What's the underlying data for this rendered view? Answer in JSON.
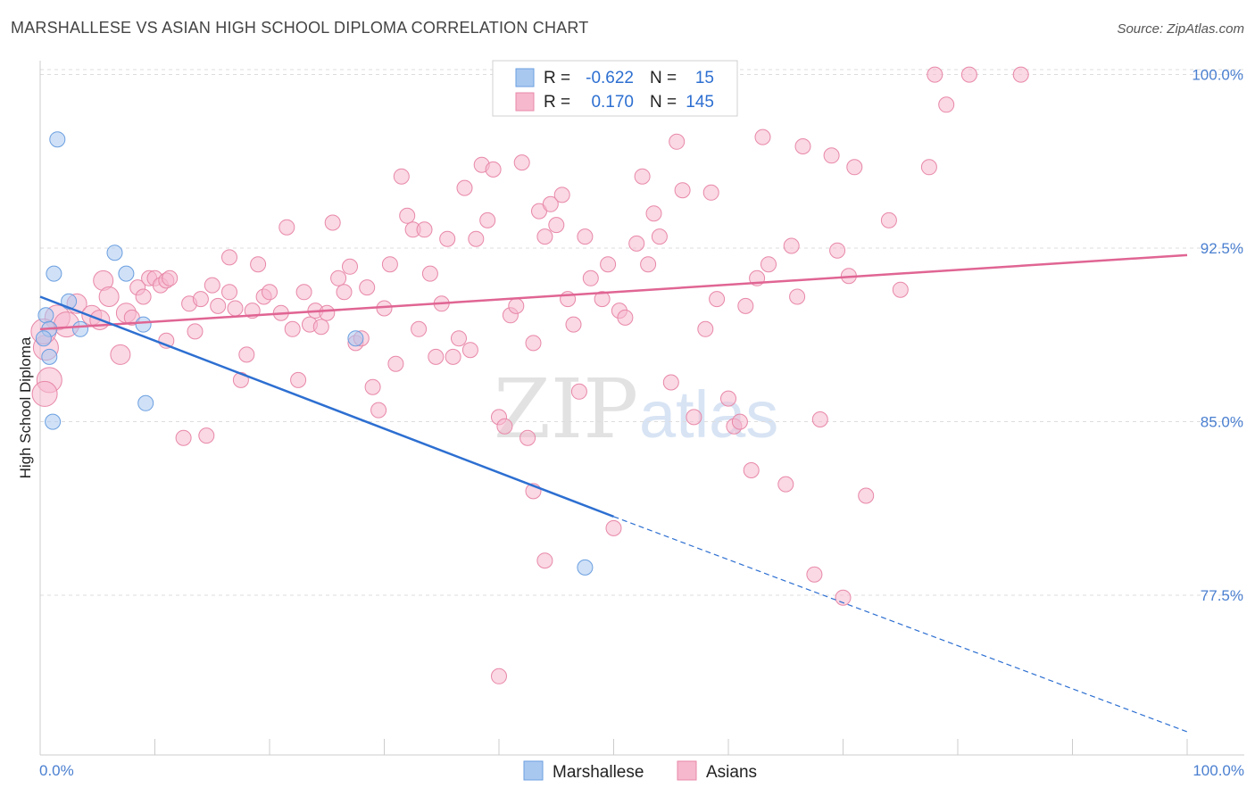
{
  "header": {
    "title": "MARSHALLESE VS ASIAN HIGH SCHOOL DIPLOMA CORRELATION CHART",
    "source": "Source: ZipAtlas.com"
  },
  "watermark": {
    "zip": "ZIP",
    "atlas": "atlas"
  },
  "legend": {
    "rows": [
      {
        "r_label": "R =",
        "r_value": "-0.622",
        "n_label": "N =",
        "n_value": "15",
        "color": "#a9c8f0",
        "border": "#6b9fe0"
      },
      {
        "r_label": "R =",
        "r_value": "0.170",
        "n_label": "N =",
        "n_value": "145",
        "color": "#f6b8cd",
        "border": "#e888a8"
      }
    ]
  },
  "bottom_legend": {
    "items": [
      "Marshallese",
      "Asians"
    ]
  },
  "colors": {
    "marshallese_fill": "#a9c8f0",
    "marshallese_stroke": "#6b9fe0",
    "marshallese_line": "#2d6fd1",
    "asians_fill": "#f6b8cd",
    "asians_stroke": "#e888a8",
    "asians_line": "#e06593",
    "tick_label": "#4a7fd0",
    "grid": "#dddddd"
  },
  "chart_data": {
    "type": "scatter",
    "title": "MARSHALLESE VS ASIAN HIGH SCHOOL DIPLOMA CORRELATION CHART",
    "xlabel": "",
    "ylabel": "High School Diploma",
    "xlim": [
      0,
      100
    ],
    "ylim": [
      70.6,
      100.6
    ],
    "x_tick_labels": [
      "0.0%",
      "100.0%"
    ],
    "y_ticks": [
      77.5,
      85.0,
      92.5,
      100.0
    ],
    "y_tick_labels": [
      "77.5%",
      "85.0%",
      "92.5%",
      "100.0%"
    ],
    "grid": true,
    "legend_position": "top-center",
    "series": [
      {
        "name": "Marshallese",
        "R": -0.622,
        "N": 15,
        "trend": {
          "x": [
            0,
            50
          ],
          "y": [
            90.4,
            80.9
          ],
          "dashed_to": [
            100,
            71.6
          ]
        },
        "points": [
          [
            1.5,
            97.2
          ],
          [
            1.2,
            91.4
          ],
          [
            0.5,
            89.6
          ],
          [
            0.8,
            89.0
          ],
          [
            0.3,
            88.6
          ],
          [
            2.5,
            90.2
          ],
          [
            3.5,
            89.0
          ],
          [
            6.5,
            92.3
          ],
          [
            7.5,
            91.4
          ],
          [
            9.0,
            89.2
          ],
          [
            0.8,
            87.8
          ],
          [
            1.1,
            85.0
          ],
          [
            9.2,
            85.8
          ],
          [
            27.5,
            88.6
          ],
          [
            47.5,
            78.7
          ]
        ]
      },
      {
        "name": "Asians",
        "R": 0.17,
        "N": 145,
        "trend": {
          "x": [
            0,
            100
          ],
          "y": [
            89.0,
            92.2
          ]
        },
        "points": [
          [
            0.5,
            88.2
          ],
          [
            0.8,
            86.8
          ],
          [
            0.4,
            86.2
          ],
          [
            1.5,
            89.5
          ],
          [
            2.3,
            89.2
          ],
          [
            3.2,
            90.1
          ],
          [
            4.5,
            89.6
          ],
          [
            5.2,
            89.4
          ],
          [
            5.5,
            91.1
          ],
          [
            6.0,
            90.4
          ],
          [
            7.0,
            87.9
          ],
          [
            7.5,
            89.7
          ],
          [
            8.0,
            89.5
          ],
          [
            8.5,
            90.8
          ],
          [
            9.0,
            90.4
          ],
          [
            9.5,
            91.2
          ],
          [
            10.0,
            91.2
          ],
          [
            10.5,
            90.9
          ],
          [
            11.0,
            91.1
          ],
          [
            11.3,
            91.2
          ],
          [
            11.0,
            88.5
          ],
          [
            12.5,
            84.3
          ],
          [
            13.0,
            90.1
          ],
          [
            13.5,
            88.9
          ],
          [
            14.0,
            90.3
          ],
          [
            14.5,
            84.4
          ],
          [
            15.0,
            90.9
          ],
          [
            15.5,
            90.0
          ],
          [
            16.5,
            90.6
          ],
          [
            17.0,
            89.9
          ],
          [
            16.5,
            92.1
          ],
          [
            17.5,
            86.8
          ],
          [
            18.0,
            87.9
          ],
          [
            18.5,
            89.8
          ],
          [
            19.0,
            91.8
          ],
          [
            19.5,
            90.4
          ],
          [
            20.0,
            90.6
          ],
          [
            21.0,
            89.7
          ],
          [
            21.5,
            93.4
          ],
          [
            22.0,
            89.0
          ],
          [
            22.5,
            86.8
          ],
          [
            23.0,
            90.6
          ],
          [
            23.5,
            89.2
          ],
          [
            24.0,
            89.8
          ],
          [
            24.5,
            89.1
          ],
          [
            25.0,
            89.7
          ],
          [
            25.5,
            93.6
          ],
          [
            26.0,
            91.2
          ],
          [
            26.5,
            90.6
          ],
          [
            27.0,
            91.7
          ],
          [
            27.5,
            88.4
          ],
          [
            28.0,
            88.6
          ],
          [
            28.5,
            90.8
          ],
          [
            29.0,
            86.5
          ],
          [
            29.5,
            85.5
          ],
          [
            30.0,
            89.9
          ],
          [
            30.5,
            91.8
          ],
          [
            31.0,
            87.5
          ],
          [
            31.5,
            95.6
          ],
          [
            32.0,
            93.9
          ],
          [
            32.5,
            93.3
          ],
          [
            33.0,
            89.0
          ],
          [
            33.5,
            93.3
          ],
          [
            34.0,
            91.4
          ],
          [
            34.5,
            87.8
          ],
          [
            35.0,
            90.1
          ],
          [
            35.5,
            92.9
          ],
          [
            36.0,
            87.8
          ],
          [
            36.5,
            88.6
          ],
          [
            37.0,
            95.1
          ],
          [
            37.5,
            88.1
          ],
          [
            38.0,
            92.9
          ],
          [
            38.5,
            96.1
          ],
          [
            39.0,
            93.7
          ],
          [
            39.5,
            95.9
          ],
          [
            40.0,
            85.2
          ],
          [
            40.5,
            84.8
          ],
          [
            41.0,
            89.6
          ],
          [
            41.5,
            90.0
          ],
          [
            42.0,
            96.2
          ],
          [
            42.5,
            84.3
          ],
          [
            43.0,
            88.4
          ],
          [
            43.5,
            94.1
          ],
          [
            44.0,
            93.0
          ],
          [
            44.5,
            94.4
          ],
          [
            45.0,
            93.5
          ],
          [
            45.5,
            94.8
          ],
          [
            46.0,
            90.3
          ],
          [
            46.5,
            89.2
          ],
          [
            47.0,
            86.3
          ],
          [
            47.5,
            93.0
          ],
          [
            48.0,
            91.2
          ],
          [
            49.0,
            90.3
          ],
          [
            49.5,
            91.8
          ],
          [
            50.0,
            80.4
          ],
          [
            50.5,
            89.8
          ],
          [
            51.0,
            89.5
          ],
          [
            52.0,
            92.7
          ],
          [
            52.5,
            95.6
          ],
          [
            53.0,
            91.8
          ],
          [
            53.5,
            94.0
          ],
          [
            54.0,
            93.0
          ],
          [
            55.0,
            86.7
          ],
          [
            55.5,
            97.1
          ],
          [
            56.0,
            95.0
          ],
          [
            57.0,
            85.2
          ],
          [
            58.0,
            89.0
          ],
          [
            58.5,
            94.9
          ],
          [
            59.0,
            90.3
          ],
          [
            60.0,
            86.0
          ],
          [
            60.5,
            84.8
          ],
          [
            61.0,
            85.0
          ],
          [
            61.5,
            90.0
          ],
          [
            62.0,
            82.9
          ],
          [
            62.5,
            91.2
          ],
          [
            63.0,
            97.3
          ],
          [
            63.5,
            91.8
          ],
          [
            65.0,
            82.3
          ],
          [
            65.5,
            92.6
          ],
          [
            66.0,
            90.4
          ],
          [
            66.5,
            96.9
          ],
          [
            67.5,
            78.4
          ],
          [
            68.0,
            85.1
          ],
          [
            69.0,
            96.5
          ],
          [
            69.5,
            92.4
          ],
          [
            70.0,
            77.4
          ],
          [
            70.5,
            91.3
          ],
          [
            71.0,
            96.0
          ],
          [
            72.0,
            81.8
          ],
          [
            74.0,
            93.7
          ],
          [
            75.0,
            90.7
          ],
          [
            77.5,
            96.0
          ],
          [
            78.0,
            100.0
          ],
          [
            81.0,
            100.0
          ],
          [
            79.0,
            98.7
          ],
          [
            85.5,
            100.0
          ],
          [
            43.0,
            82.0
          ],
          [
            44.0,
            79.0
          ],
          [
            40.0,
            74.0
          ],
          [
            0.3,
            88.9
          ]
        ]
      }
    ]
  }
}
